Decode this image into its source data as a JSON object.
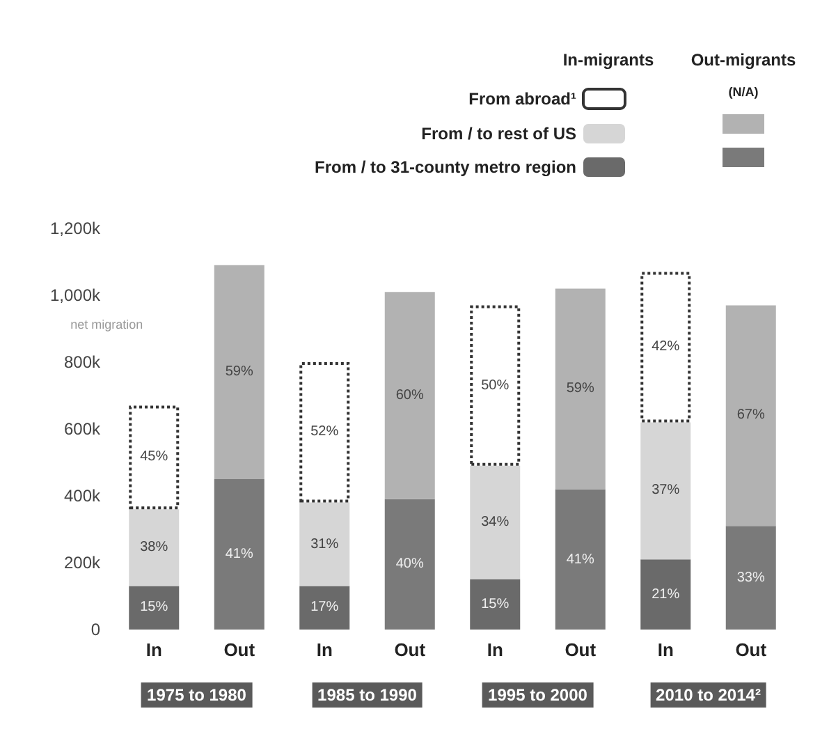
{
  "chart_data": {
    "type": "bar",
    "stacked": true,
    "categories": [
      "In",
      "Out",
      "In",
      "Out",
      "In",
      "Out",
      "In",
      "Out"
    ],
    "series": [
      {
        "name": "From / to 31-county metro region",
        "color": "#6a6a6a",
        "colors": [
          "#6a6a6a",
          "#7a7a7a",
          "#6a6a6a",
          "#7a7a7a",
          "#6a6a6a",
          "#7a7a7a",
          "#6a6a6a",
          "#7a7a7a"
        ],
        "values": [
          130,
          450,
          130,
          390,
          150,
          420,
          210,
          310
        ]
      },
      {
        "name": "From / to rest of US",
        "color": "#d6d6d6",
        "colors": [
          "#d6d6d6",
          "#b2b2b2",
          "#d6d6d6",
          "#b2b2b2",
          "#d6d6d6",
          "#b2b2b2",
          "#d6d6d6",
          "#b2b2b2"
        ],
        "values": [
          230,
          640,
          250,
          620,
          340,
          600,
          410,
          660
        ]
      },
      {
        "name": "From abroad¹",
        "color": "#ffffff",
        "line_style": "dotted",
        "values": [
          310,
          null,
          420,
          null,
          480,
          null,
          450,
          null
        ]
      }
    ],
    "ylim": [
      0,
      1200
    ],
    "yticks": [
      0,
      {
        "value": 200,
        "label": "200k"
      },
      {
        "value": 400,
        "label": "400k"
      },
      {
        "value": 600,
        "label": "600k"
      },
      {
        "value": 800,
        "label": "800k"
      },
      {
        "value": 1000,
        "label": "1,000k"
      },
      {
        "value": 1200,
        "label": "1,200k"
      }
    ],
    "grid": false,
    "legend": "top right",
    "annotations": [
      "1975 to 1980",
      "1985 to 1990",
      "1995 to 2000",
      "2010 to 2014²",
      "In-migrants",
      "Out-migrants",
      "(N/A)",
      "net migration",
      "15%",
      "38%",
      "45%",
      "41%",
      "59%",
      "17%",
      "31%",
      "52%",
      "40%",
      "60%",
      "15%",
      "34%",
      "50%",
      "41%",
      "59%",
      "21%",
      "37%",
      "42%",
      "33%",
      "67%"
    ]
  }
}
